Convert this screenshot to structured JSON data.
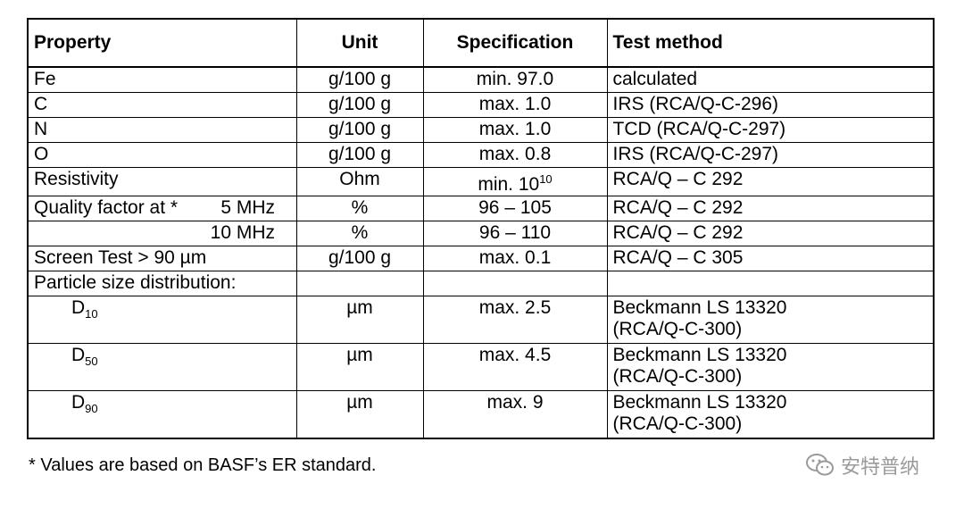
{
  "table": {
    "headers": {
      "property": "Property",
      "unit": "Unit",
      "specification": "Specification",
      "test_method": "Test method"
    },
    "rows": [
      {
        "property": "Fe",
        "unit": "g/100 g",
        "spec": "min. 97.0",
        "method": "calculated"
      },
      {
        "property": "C",
        "unit": "g/100 g",
        "spec": "max. 1.0",
        "method": "IRS (RCA/Q-C-296)"
      },
      {
        "property": "N",
        "unit": "g/100 g",
        "spec": "max. 1.0",
        "method": "TCD (RCA/Q-C-297)"
      },
      {
        "property": "O",
        "unit": "g/100 g",
        "spec": "max. 0.8",
        "method": "IRS (RCA/Q-C-297)"
      },
      {
        "property": "Resistivity",
        "unit": "Ohm",
        "spec_prefix": "min. 10",
        "spec_exponent": "10",
        "method": "RCA/Q – C 292"
      },
      {
        "property": "Quality factor at *",
        "frequency": "5 MHz",
        "unit": "%",
        "spec": "96 – 105",
        "method": "RCA/Q – C 292"
      },
      {
        "frequency": "10 MHz",
        "unit": "%",
        "spec": "96 – 110",
        "method": "RCA/Q – C 292"
      },
      {
        "property": "Screen Test > 90 µm",
        "unit": "g/100 g",
        "spec": "max. 0.1",
        "method": "RCA/Q – C 305"
      },
      {
        "property": "Particle size distribution:"
      },
      {
        "property_base": "D",
        "property_sub": "10",
        "unit": "µm",
        "spec": "max. 2.5",
        "method_line1": "Beckmann LS 13320",
        "method_line2": "(RCA/Q-C-300)"
      },
      {
        "property_base": "D",
        "property_sub": "50",
        "unit": "µm",
        "spec": "max. 4.5",
        "method_line1": "Beckmann LS 13320",
        "method_line2": "(RCA/Q-C-300)"
      },
      {
        "property_base": "D",
        "property_sub": "90",
        "unit": "µm",
        "spec": "max. 9",
        "method_line1": "Beckmann LS 13320",
        "method_line2": "(RCA/Q-C-300)"
      }
    ]
  },
  "footnote": "* Values are based on BASF’s ER standard.",
  "watermark": {
    "icon": "wechat-icon",
    "text": "安特普纳",
    "color": "#9a9a9a"
  }
}
